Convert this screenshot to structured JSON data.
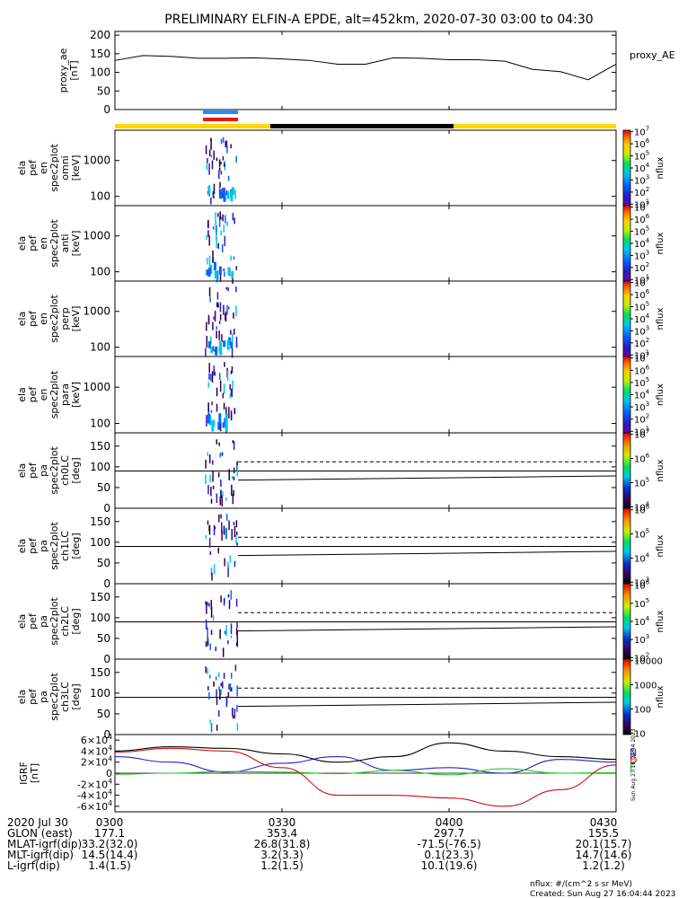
{
  "title": "PRELIMINARY ELFIN-A EPDE, alt=452km, 2020-07-30 03:00 to 04:30",
  "colors": {
    "line": "#000000",
    "bar_yellow": "#FFD700",
    "bar_black": "#000000",
    "sci_blue": "#1E90FF",
    "sci_red": "#E8190C",
    "grf_n": "#2222CC",
    "grf_e": "#22CC22",
    "grf_d": "#CC1111",
    "grf_total": "#000000"
  },
  "chart_data": [
    {
      "type": "line",
      "panel": "proxy_ae",
      "ylabel": [
        "proxy_ae",
        "[nT]"
      ],
      "legend": "proxy_AE",
      "yticks": [
        "0",
        "50",
        "100",
        "150",
        "200"
      ],
      "ylim": [
        0,
        210
      ],
      "x_minutes": [
        0,
        5,
        10,
        15,
        20,
        25,
        30,
        35,
        40,
        45,
        50,
        55,
        60,
        65,
        70,
        75,
        80,
        85,
        90
      ],
      "values": [
        132,
        145,
        143,
        138,
        138,
        139,
        136,
        132,
        122,
        122,
        139,
        138,
        134,
        134,
        130,
        108,
        102,
        80,
        122
      ]
    },
    {
      "type": "heatmap",
      "panel": "omni",
      "ylabel": [
        "ela",
        "pef",
        "en",
        "spec2plot",
        "omni",
        "[keV]"
      ],
      "yticks": [
        "100",
        "1000"
      ],
      "colorbar": {
        "label": "nflux",
        "ticks": [
          "10^1",
          "10^2",
          "10^3",
          "10^4",
          "10^5",
          "10^6",
          "10^7"
        ]
      }
    },
    {
      "type": "heatmap",
      "panel": "anti",
      "ylabel": [
        "ela",
        "pef",
        "en",
        "spec2plot",
        "anti",
        "[keV]"
      ],
      "yticks": [
        "100",
        "1000"
      ],
      "colorbar": {
        "label": "nflux",
        "ticks": [
          "10^1",
          "10^2",
          "10^3",
          "10^4",
          "10^5",
          "10^6",
          "10^7"
        ]
      }
    },
    {
      "type": "heatmap",
      "panel": "perp",
      "ylabel": [
        "ela",
        "pef",
        "en",
        "spec2plot",
        "perp",
        "[keV]"
      ],
      "yticks": [
        "100",
        "1000"
      ],
      "colorbar": {
        "label": "nflux",
        "ticks": [
          "10^1",
          "10^2",
          "10^3",
          "10^4",
          "10^5",
          "10^6",
          "10^7"
        ]
      }
    },
    {
      "type": "heatmap",
      "panel": "para",
      "ylabel": [
        "ela",
        "pef",
        "en",
        "spec2plot",
        "para",
        "[keV]"
      ],
      "yticks": [
        "100",
        "1000"
      ],
      "colorbar": {
        "label": "nflux",
        "ticks": [
          "10^1",
          "10^2",
          "10^3",
          "10^4",
          "10^5",
          "10^6",
          "10^7"
        ]
      }
    },
    {
      "type": "heatmap",
      "panel": "ch0LC",
      "ylabel": [
        "ela",
        "pef",
        "pa",
        "spec2plot",
        "ch0LC",
        "[deg]"
      ],
      "yticks": [
        "0",
        "50",
        "100",
        "150"
      ],
      "colorbar": {
        "label": "nflux",
        "ticks": [
          "10^4",
          "10^5",
          "10^6",
          "10^7"
        ]
      }
    },
    {
      "type": "heatmap",
      "panel": "ch1LC",
      "ylabel": [
        "ela",
        "pef",
        "pa",
        "spec2plot",
        "ch1LC",
        "[deg]"
      ],
      "yticks": [
        "0",
        "50",
        "100",
        "150"
      ],
      "colorbar": {
        "label": "nflux",
        "ticks": [
          "10^3",
          "10^4",
          "10^5",
          "10^6"
        ]
      }
    },
    {
      "type": "heatmap",
      "panel": "ch2LC",
      "ylabel": [
        "ela",
        "pef",
        "pa",
        "spec2plot",
        "ch2LC",
        "[deg]"
      ],
      "yticks": [
        "0",
        "50",
        "100",
        "150"
      ],
      "colorbar": {
        "label": "nflux",
        "ticks": [
          "10^2",
          "10^3",
          "10^4",
          "10^5",
          "10^6"
        ]
      }
    },
    {
      "type": "heatmap",
      "panel": "ch3LC",
      "ylabel": [
        "ela",
        "pef",
        "pa",
        "spec2plot",
        "ch3LC",
        "[deg]"
      ],
      "yticks": [
        "0",
        "50",
        "100",
        "150"
      ],
      "colorbar": {
        "label": "nflux",
        "ticks": [
          "10",
          "100",
          "1000",
          "10000"
        ]
      }
    },
    {
      "type": "line",
      "panel": "IGRF",
      "ylabel": [
        "IGRF",
        "[nT]"
      ],
      "yticks": [
        "-6×10^4",
        "-4×10^4",
        "-2×10^4",
        "0",
        "2×10^4",
        "4×10^4",
        "6×10^4"
      ],
      "ylim": [
        -70000,
        70000
      ],
      "legend": [
        "N",
        "E",
        "D"
      ],
      "x_minutes": [
        0,
        10,
        20,
        30,
        40,
        50,
        60,
        70,
        80,
        90
      ],
      "series": [
        {
          "name": "N",
          "values": [
            30000,
            20000,
            2000,
            18000,
            30000,
            5000,
            10000,
            0,
            25000,
            20000
          ]
        },
        {
          "name": "E",
          "values": [
            -2000,
            0,
            3000,
            2000,
            -1000,
            5000,
            -3000,
            8000,
            0,
            1000
          ]
        },
        {
          "name": "D",
          "values": [
            38000,
            45000,
            40000,
            10000,
            -40000,
            -40000,
            -45000,
            -60000,
            -30000,
            15000
          ]
        },
        {
          "values": [
            40000,
            48000,
            45000,
            35000,
            20000,
            30000,
            55000,
            40000,
            30000,
            25000
          ]
        }
      ]
    }
  ],
  "vertical_note": "Sun Aug 27 16:04:44 2023",
  "orbit_table": {
    "rows": [
      [
        "2020 Jul 30",
        "0300",
        "0330",
        "0400",
        "0430"
      ],
      [
        "GLON (east)",
        "177.1",
        "353.4",
        "297.7",
        "155.5"
      ],
      [
        "MLAT-igrf(dip)",
        "33.2(32.0)",
        "26.8(31.8)",
        "-71.5(-76.5)",
        "20.1(15.7)"
      ],
      [
        "MLT-igrf(dip)",
        "14.5(14.4)",
        "3.2(3.3)",
        "0.1(23.3)",
        "14.7(14.6)"
      ],
      [
        "L-igrf(dip)",
        "1.4(1.5)",
        "1.2(1.5)",
        "10.1(19.6)",
        "1.2(1.2)"
      ]
    ]
  },
  "footer": {
    "units": "nflux: #/(cm^2 s sr MeV)",
    "created": "Created: Sun Aug 27 16:04:44 2023"
  }
}
